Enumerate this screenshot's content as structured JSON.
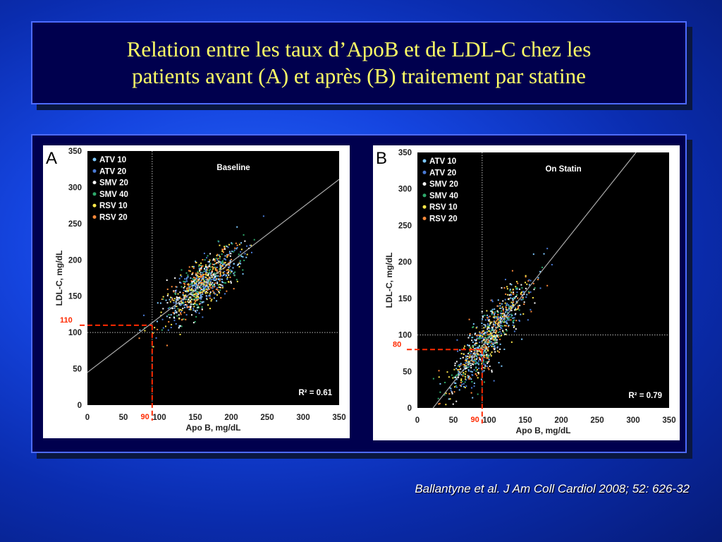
{
  "slide": {
    "title_line1": "Relation entre les taux d’ApoB et de LDL-C chez les",
    "title_line2": "patients avant (A) et après (B) traitement par statine",
    "citation": "Ballantyne et al. J Am Coll Cardiol 2008; 52: 626-32"
  },
  "colors": {
    "title": "#ffff66",
    "annotation": "#ff2a00",
    "plot_bg": "#000000"
  },
  "chart_data": [
    {
      "type": "scatter",
      "panel_letter": "A",
      "title": "Baseline",
      "xlabel": "Apo B, mg/dL",
      "ylabel": "LDL-C, mg/dL",
      "xlim": [
        0,
        350
      ],
      "ylim": [
        0,
        350
      ],
      "xticks": [
        "0",
        "50",
        "100",
        "150",
        "200",
        "250",
        "300",
        "350"
      ],
      "yticks": [
        "0",
        "50",
        "100",
        "150",
        "200",
        "250",
        "300",
        "350"
      ],
      "r2_label": "R² = 0.61",
      "legend": [
        "ATV 10",
        "ATV 20",
        "SMV 20",
        "SMV 40",
        "RSV 10",
        "RSV 20"
      ],
      "legend_colors": [
        "#7ec8ff",
        "#4a7bd6",
        "#ffffff",
        "#2ea86a",
        "#ffe84a",
        "#ff8a3a"
      ],
      "reference_lines": {
        "x": 90,
        "y": 100
      },
      "regression_line": {
        "intercept": 45,
        "slope": 0.76
      },
      "cluster": {
        "x_mean": 160,
        "x_sd": 26,
        "y_mean": 170,
        "y_sd": 30,
        "n": 900
      },
      "annotation": {
        "x": 90,
        "y": 110,
        "x_label": "90",
        "y_label": "110"
      }
    },
    {
      "type": "scatter",
      "panel_letter": "B",
      "title": "On Statin",
      "xlabel": "Apo B, mg/dL",
      "ylabel": "LDL-C, mg/dL",
      "xlim": [
        0,
        350
      ],
      "ylim": [
        0,
        350
      ],
      "xticks": [
        "0",
        "50",
        "100",
        "150",
        "200",
        "250",
        "300",
        "350"
      ],
      "yticks": [
        "0",
        "50",
        "100",
        "150",
        "200",
        "250",
        "300",
        "350"
      ],
      "r2_label": "R² = 0.79",
      "legend": [
        "ATV 10",
        "ATV 20",
        "SMV 20",
        "SMV 40",
        "RSV 10",
        "RSV 20"
      ],
      "legend_colors": [
        "#7ec8ff",
        "#4a7bd6",
        "#ffffff",
        "#2ea86a",
        "#ffe84a",
        "#ff8a3a"
      ],
      "reference_lines": {
        "x": 90,
        "y": 100
      },
      "regression_line": {
        "intercept": -27,
        "slope": 1.24
      },
      "cluster": {
        "x_mean": 100,
        "x_sd": 28,
        "y_mean": 95,
        "y_sd": 35,
        "n": 900
      },
      "annotation": {
        "x": 90,
        "y": 80,
        "x_label": "90",
        "y_label": "80"
      }
    }
  ]
}
